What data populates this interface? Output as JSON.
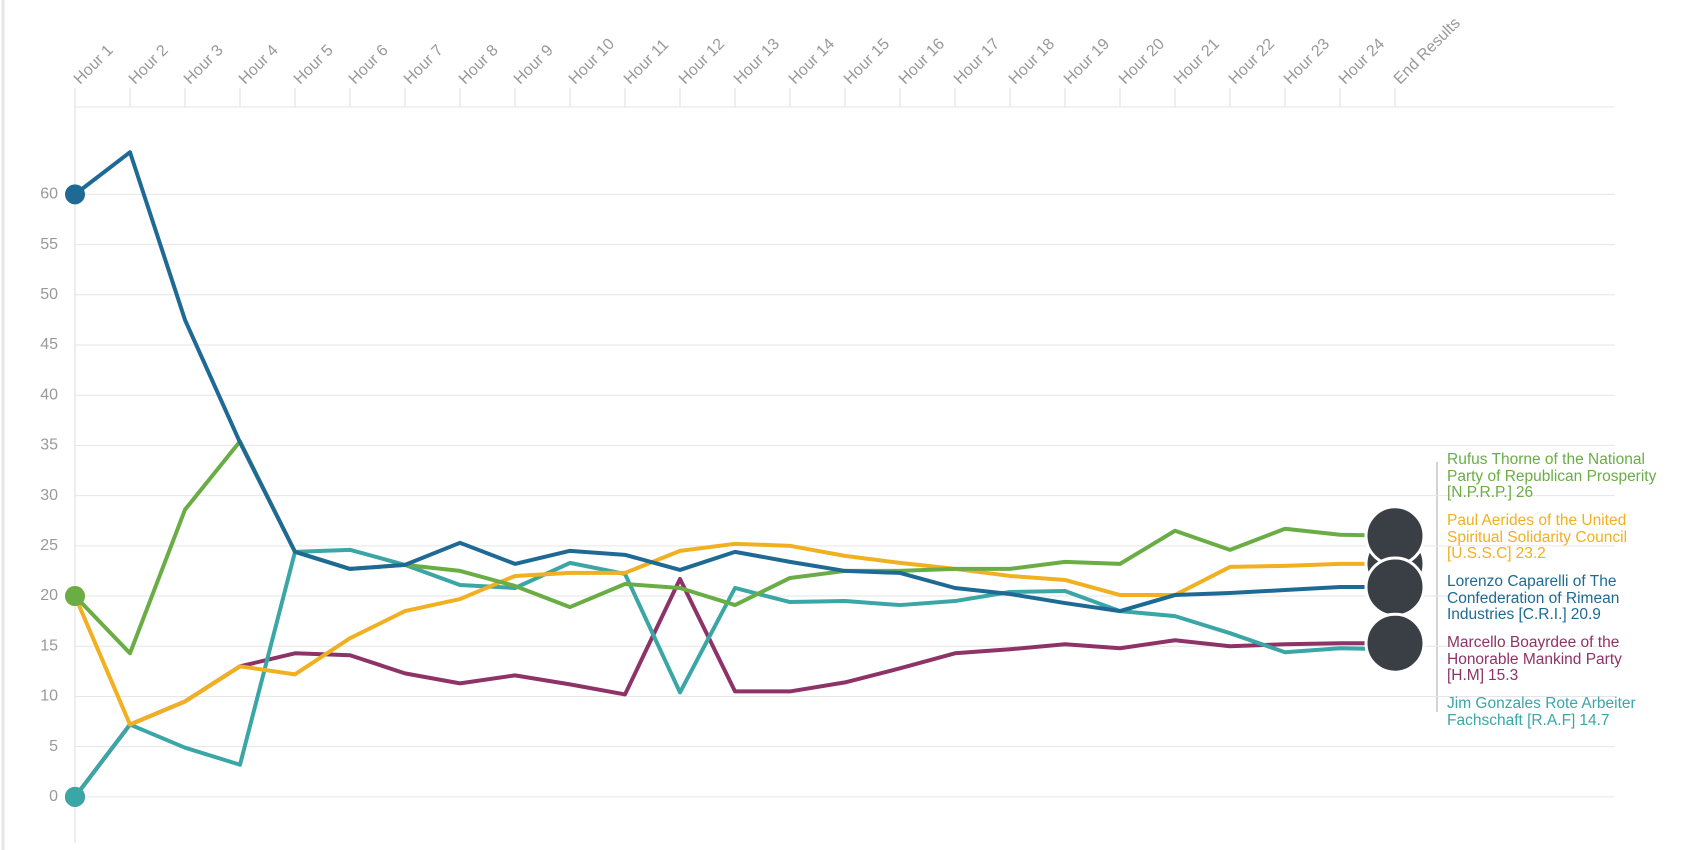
{
  "chart_data": {
    "type": "line",
    "categories": [
      "Hour 1",
      "Hour 2",
      "Hour 3",
      "Hour 4",
      "Hour 5",
      "Hour 6",
      "Hour 7",
      "Hour 8",
      "Hour 9",
      "Hour 10",
      "Hour 11",
      "Hour 12",
      "Hour 13",
      "Hour 14",
      "Hour 15",
      "Hour 16",
      "Hour 17",
      "Hour 18",
      "Hour 19",
      "Hour 20",
      "Hour 21",
      "Hour 22",
      "Hour 23",
      "Hour 24",
      "End Results"
    ],
    "ylim": [
      -3.3,
      68.7
    ],
    "yticks": [
      0,
      5,
      10,
      15,
      20,
      25,
      30,
      35,
      40,
      45,
      50,
      55,
      60
    ],
    "grid": true,
    "series": [
      {
        "name": "Rufus Thorne of the National Party of Republican Prosperity [N.P.R.P.]",
        "color": "#6aad45",
        "values": [
          20,
          14.3,
          28.6,
          35.4,
          24.4,
          22.7,
          23.1,
          22.5,
          21,
          18.9,
          21.2,
          20.8,
          19.1,
          21.8,
          22.5,
          22.5,
          22.7,
          22.7,
          23.4,
          23.2,
          26.5,
          24.6,
          26.7,
          26.1,
          26
        ]
      },
      {
        "name": "Paul Aerides of the United Spiritual Solidarity Council [U.S.S.C]",
        "color": "#f0b020",
        "values": [
          20,
          7.2,
          9.5,
          13,
          12.2,
          15.8,
          18.5,
          19.7,
          22,
          22.3,
          22.3,
          24.5,
          25.2,
          25,
          24,
          23.3,
          22.7,
          22,
          21.6,
          20.1,
          20.1,
          22.9,
          23,
          23.2,
          23.2
        ]
      },
      {
        "name": "Lorenzo Caparelli of The Confederation of Rimean Industries [C.R.I.]",
        "color": "#1f6a94",
        "values": [
          60,
          64.2,
          47.5,
          35.3,
          24.4,
          22.7,
          23.1,
          25.3,
          23.2,
          24.5,
          24.1,
          22.6,
          24.4,
          23.4,
          22.5,
          22.3,
          20.8,
          20.2,
          19.3,
          18.5,
          20.1,
          20.3,
          20.6,
          20.9,
          20.9
        ]
      },
      {
        "name": "Marcello Boayrdee of the Honorable Mankind Party [H.M]",
        "color": "#8e3368",
        "values": [
          0,
          7.2,
          9.5,
          13,
          14.3,
          14.1,
          12.3,
          11.3,
          12.1,
          11.2,
          10.2,
          21.7,
          10.5,
          10.5,
          11.4,
          12.8,
          14.3,
          14.7,
          15.2,
          14.8,
          15.6,
          15,
          15.2,
          15.3,
          15.3
        ]
      },
      {
        "name": "Jim Gonzales Rote Arbeiter Fachschaft [R.A.F]",
        "color": "#3aa6a6",
        "values": [
          0,
          7.2,
          4.9,
          3.2,
          24.4,
          24.6,
          23.1,
          21.1,
          20.8,
          23.3,
          22.2,
          10.4,
          20.8,
          19.4,
          19.5,
          19.1,
          19.5,
          20.4,
          20.5,
          18.5,
          18,
          16.3,
          14.4,
          14.8,
          14.7
        ]
      }
    ]
  }
}
